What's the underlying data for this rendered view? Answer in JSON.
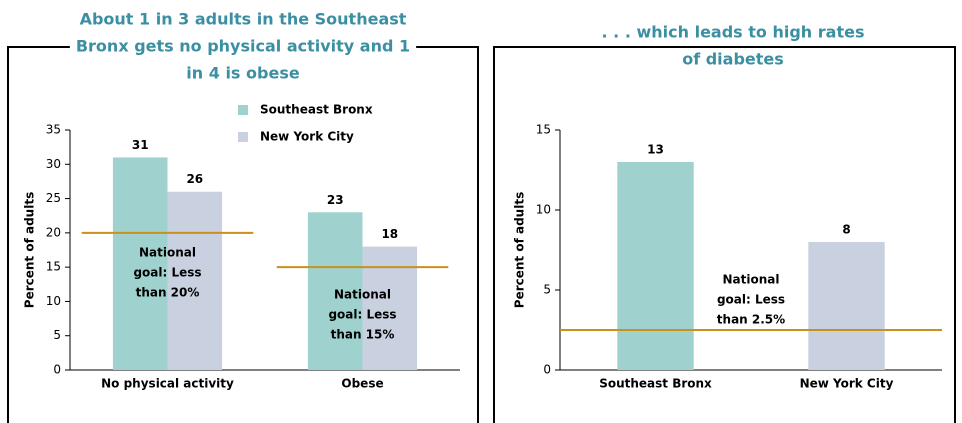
{
  "chart_data": [
    {
      "type": "bar",
      "title": [
        "About 1 in 3 adults in the Southeast",
        "Bronx gets no physical activity and 1",
        "in 4 is obese"
      ],
      "ylabel": "Percent of adults",
      "categories": [
        "No physical activity",
        "Obese"
      ],
      "series": [
        {
          "name": "Southeast Bronx",
          "color": "#9fd2cf",
          "values": [
            31,
            23
          ]
        },
        {
          "name": "New York City",
          "color": "#c9d1e1",
          "values": [
            26,
            18
          ]
        }
      ],
      "ylim": [
        0,
        35
      ],
      "yticks": [
        0,
        5,
        10,
        15,
        20,
        25,
        30,
        35
      ],
      "reference_lines": [
        {
          "value": 20,
          "label": [
            "National",
            "goal: Less",
            "than 20%"
          ],
          "color": "#c8911c"
        },
        {
          "value": 15,
          "label": [
            "National",
            "goal: Less",
            "than 15%"
          ],
          "color": "#c8911c"
        }
      ]
    },
    {
      "type": "bar",
      "title": [
        ". . . which leads to high rates",
        "of diabetes"
      ],
      "ylabel": "Percent of adults",
      "categories": [
        "Southeast Bronx",
        "New York City"
      ],
      "values": [
        13,
        8
      ],
      "colors": [
        "#9fd2cf",
        "#c9d1e1"
      ],
      "ylim": [
        0,
        15
      ],
      "yticks": [
        0,
        5,
        10,
        15
      ],
      "reference_lines": [
        {
          "value": 2.5,
          "label": [
            "National",
            "goal: Less",
            "than 2.5%"
          ],
          "color": "#c8911c"
        }
      ]
    }
  ]
}
